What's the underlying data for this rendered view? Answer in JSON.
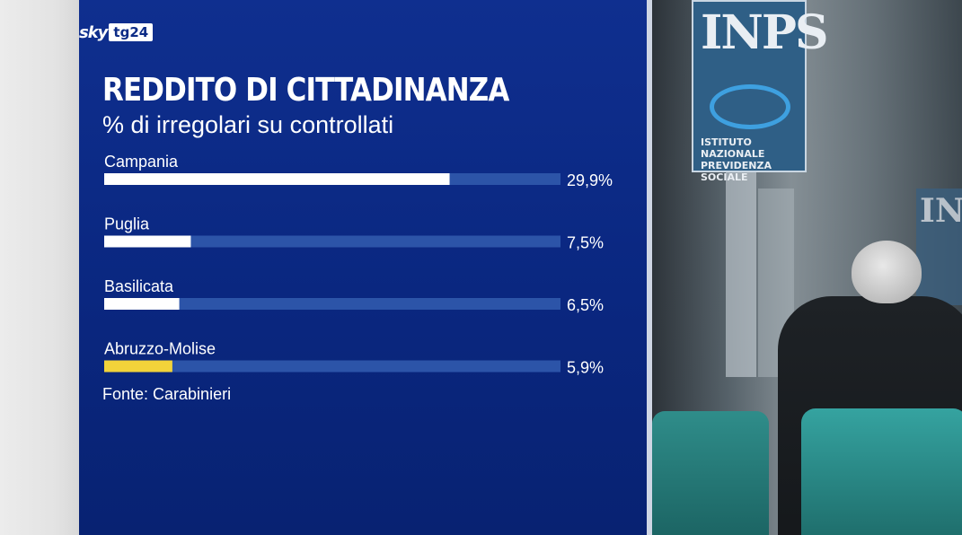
{
  "brand": {
    "sky": "sky",
    "tg": "tg24"
  },
  "chart_data": {
    "type": "bar",
    "orientation": "horizontal",
    "title": "REDDITO DI CITTADINANZA",
    "subtitle": "% di irregolari su controllati",
    "categories": [
      "Campania",
      "Puglia",
      "Basilicata",
      "Abruzzo-Molise"
    ],
    "values": [
      29.9,
      7.5,
      6.5,
      5.9
    ],
    "value_labels": [
      "29,9%",
      "7,5%",
      "6,5%",
      "5,9%"
    ],
    "bar_colors": [
      "#ffffff",
      "#ffffff",
      "#ffffff",
      "#f2d33a"
    ],
    "track_color": "#2c54a8",
    "xlim": [
      0,
      39.5
    ],
    "source": "Fonte: Carabinieri"
  },
  "photo": {
    "sign_text": "INPS",
    "sign_subtext_1": "ISTITUTO NAZIONALE",
    "sign_subtext_2": "PREVIDENZA SOCIALE",
    "sign2_text": "INP"
  }
}
